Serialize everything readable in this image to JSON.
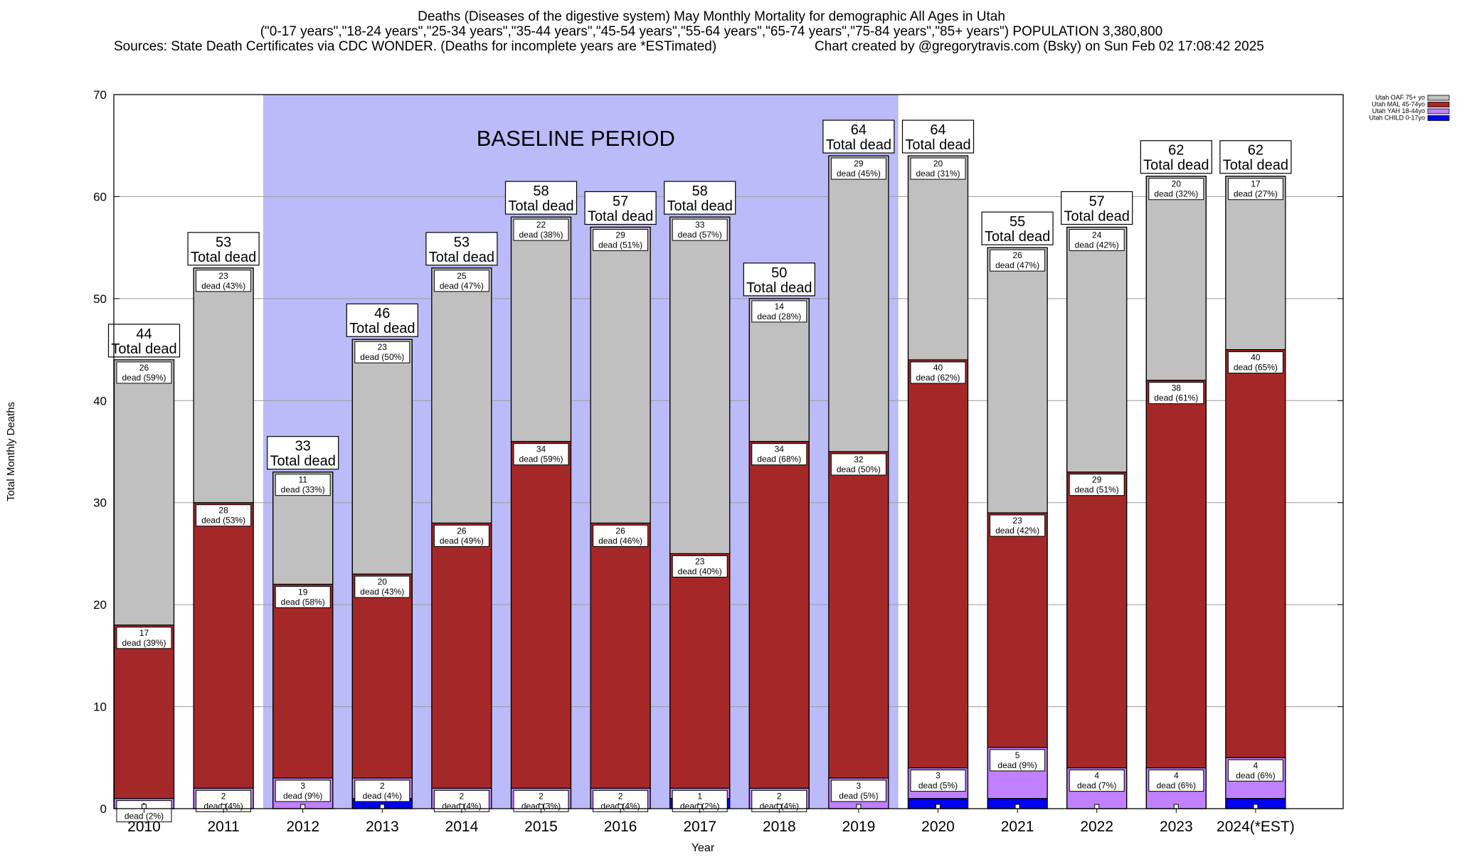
{
  "chart_data": {
    "type": "bar",
    "stacked": true,
    "title_lines": [
      "Deaths (Diseases of the digestive system) May Monthly Mortality for demographic All Ages in Utah",
      "(\"0-17 years\",\"18-24 years\",\"25-34 years\",\"35-44 years\",\"45-54 years\",\"55-64 years\",\"65-74 years\",\"75-84 years\",\"85+ years\") POPULATION 3,380,800"
    ],
    "source_text": "Sources: State Death Certificates via CDC WONDER. (Deaths for incomplete years are *ESTimated)",
    "credit_text": "Chart created by @gregorytravis.com (Bsky) on Sun Feb 02 17:08:42 2025",
    "xlabel": "Year",
    "ylabel": "Total Monthly Deaths",
    "ylim": [
      0,
      70
    ],
    "yticks": [
      0,
      10,
      20,
      30,
      40,
      50,
      60,
      70
    ],
    "grid": "horizontal",
    "legend_position": "top-right",
    "baseline": {
      "label": "BASELINE PERIOD",
      "from": "2012",
      "to": "2019",
      "color": "#bbbbf9"
    },
    "total_suffix": "Total dead",
    "dead_word": "dead",
    "categories": [
      "2010",
      "2011",
      "2012",
      "2013",
      "2014",
      "2015",
      "2016",
      "2017",
      "2018",
      "2019",
      "2020",
      "2021",
      "2022",
      "2023",
      "2024(*EST)"
    ],
    "totals": [
      44,
      53,
      33,
      46,
      53,
      58,
      57,
      58,
      50,
      64,
      64,
      55,
      57,
      62,
      62
    ],
    "series": [
      {
        "name": "Utah CHILD 0-17yo",
        "color": "#0000ee",
        "values": [
          0,
          0,
          0,
          1,
          0,
          0,
          0,
          1,
          0,
          0,
          1,
          1,
          0,
          0,
          1
        ],
        "labels": [
          null,
          null,
          null,
          null,
          null,
          null,
          null,
          null,
          null,
          null,
          null,
          null,
          null,
          null,
          null
        ]
      },
      {
        "name": "Utah YAH 18-44yo",
        "color": "#c080ff",
        "values": [
          1,
          2,
          3,
          2,
          2,
          2,
          2,
          1,
          2,
          3,
          3,
          5,
          4,
          4,
          4
        ],
        "labels": [
          "1|dead (2%)",
          "2|dead (4%)",
          "3|dead (9%)",
          "2|dead (4%)",
          "2|dead (4%)",
          "2|dead (3%)",
          "2|dead (4%)",
          "1|dead (2%)",
          "2|dead (4%)",
          "3|dead (5%)",
          "3|dead (5%)",
          "5|dead (9%)",
          "4|dead (7%)",
          "4|dead (6%)",
          "4|dead (6%)"
        ]
      },
      {
        "name": "Utah MAL 45-74yo",
        "color": "#a52828",
        "values": [
          17,
          28,
          19,
          20,
          26,
          34,
          26,
          23,
          34,
          32,
          40,
          23,
          29,
          38,
          40
        ],
        "labels": [
          "17|dead (39%)",
          "28|dead (53%)",
          "19|dead (58%)",
          "20|dead (43%)",
          "26|dead (49%)",
          "34|dead (59%)",
          "26|dead (46%)",
          "23|dead (40%)",
          "34|dead (68%)",
          "32|dead (50%)",
          "40|dead (62%)",
          "23|dead (42%)",
          "29|dead (51%)",
          "38|dead (61%)",
          "40|dead (65%)"
        ]
      },
      {
        "name": "Utah OAF 75+ yo",
        "color": "#c0c0c0",
        "values": [
          26,
          23,
          11,
          23,
          25,
          22,
          29,
          33,
          14,
          29,
          20,
          26,
          24,
          20,
          17
        ],
        "labels": [
          "26|dead (59%)",
          "23|dead (43%)",
          "11|dead (33%)",
          "23|dead (50%)",
          "25|dead (47%)",
          "22|dead (38%)",
          "29|dead (51%)",
          "33|dead (57%)",
          "14|dead (28%)",
          "29|dead (45%)",
          "20|dead (31%)",
          "26|dead (47%)",
          "24|dead (42%)",
          "20|dead (32%)",
          "17|dead (27%)"
        ]
      }
    ]
  }
}
